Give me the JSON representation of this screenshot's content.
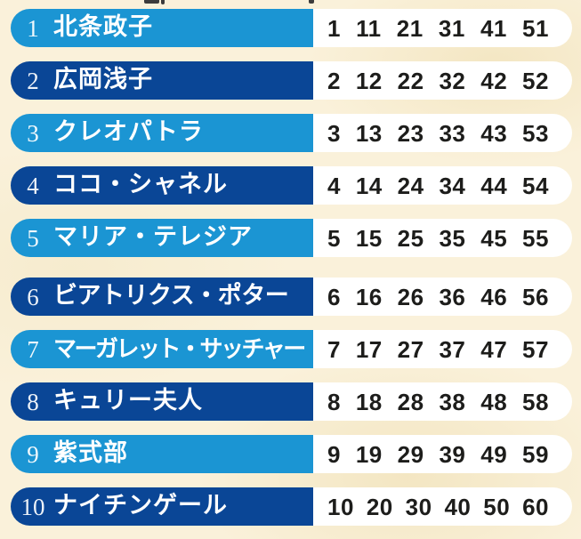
{
  "page": {
    "description_label": "list of historical women with assigned number columns",
    "colors": {
      "background_cream": "#faf1da",
      "row_light_blue": "#1b95d3",
      "row_dark_blue": "#0a4696",
      "number_panel_white": "#ffffff",
      "number_text": "#1d1d1b",
      "name_text": "#ffffff"
    }
  },
  "rows": [
    {
      "rank": "1",
      "name": "北条政子",
      "tone": "light",
      "group_start": false,
      "numbers": [
        "1",
        "11",
        "21",
        "31",
        "41",
        "51"
      ]
    },
    {
      "rank": "2",
      "name": "広岡浅子",
      "tone": "dark",
      "group_start": false,
      "numbers": [
        "2",
        "12",
        "22",
        "32",
        "42",
        "52"
      ]
    },
    {
      "rank": "3",
      "name": "クレオパトラ",
      "tone": "light",
      "group_start": false,
      "numbers": [
        "3",
        "13",
        "23",
        "33",
        "43",
        "53"
      ]
    },
    {
      "rank": "4",
      "name": "ココ・シャネル",
      "tone": "dark",
      "group_start": false,
      "numbers": [
        "4",
        "14",
        "24",
        "34",
        "44",
        "54"
      ]
    },
    {
      "rank": "5",
      "name": "マリア・テレジア",
      "tone": "light",
      "group_start": false,
      "numbers": [
        "5",
        "15",
        "25",
        "35",
        "45",
        "55"
      ]
    },
    {
      "rank": "6",
      "name": "ビアトリクス・ポター",
      "tone": "dark",
      "group_start": true,
      "numbers": [
        "6",
        "16",
        "26",
        "36",
        "46",
        "56"
      ]
    },
    {
      "rank": "7",
      "name": "マーガレット・サッチャー",
      "tone": "light",
      "group_start": false,
      "numbers": [
        "7",
        "17",
        "27",
        "37",
        "47",
        "57"
      ]
    },
    {
      "rank": "8",
      "name": "キュリー夫人",
      "tone": "dark",
      "group_start": false,
      "numbers": [
        "8",
        "18",
        "28",
        "38",
        "48",
        "58"
      ]
    },
    {
      "rank": "9",
      "name": "紫式部",
      "tone": "light",
      "group_start": false,
      "numbers": [
        "9",
        "19",
        "29",
        "39",
        "49",
        "59"
      ]
    },
    {
      "rank": "10",
      "name": "ナイチンゲール",
      "tone": "dark",
      "group_start": false,
      "numbers": [
        "10",
        "20",
        "30",
        "40",
        "50",
        "60"
      ]
    }
  ]
}
